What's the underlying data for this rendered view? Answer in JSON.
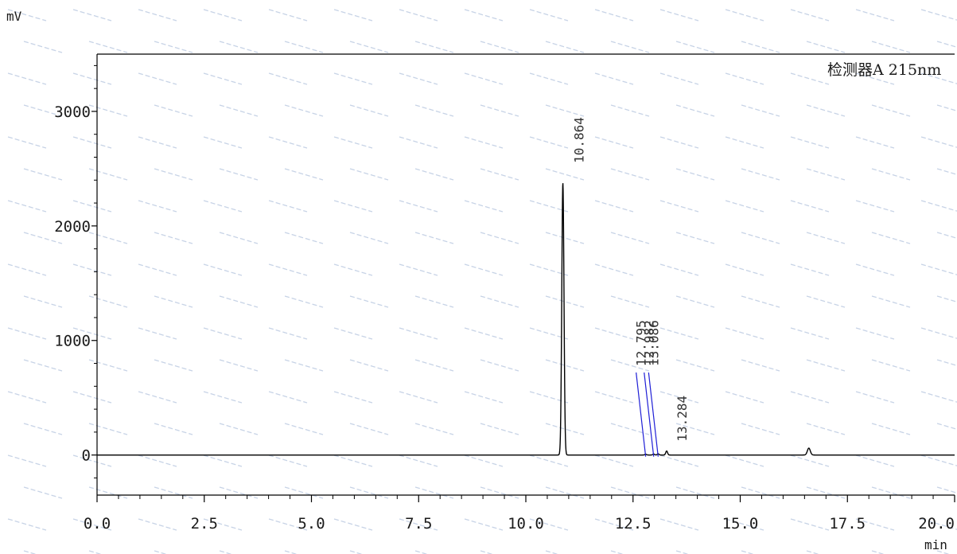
{
  "chart_data": {
    "type": "line",
    "title": "",
    "ylabel": "mV",
    "xlabel": "min",
    "detector_label": "检测器A 215nm",
    "xlim": [
      0,
      20
    ],
    "ylim": [
      -350,
      3500
    ],
    "grid": false,
    "x_ticks": [
      {
        "value": 0,
        "label": "0.0"
      },
      {
        "value": 2.5,
        "label": "2.5"
      },
      {
        "value": 5,
        "label": "5.0"
      },
      {
        "value": 7.5,
        "label": "7.5"
      },
      {
        "value": 10,
        "label": "10.0"
      },
      {
        "value": 12.5,
        "label": "12.5"
      },
      {
        "value": 15,
        "label": "15.0"
      },
      {
        "value": 17.5,
        "label": "17.5"
      },
      {
        "value": 20,
        "label": "20.0"
      }
    ],
    "y_ticks": [
      {
        "value": 0,
        "label": "0"
      },
      {
        "value": 1000,
        "label": "1000"
      },
      {
        "value": 2000,
        "label": "2000"
      },
      {
        "value": 3000,
        "label": "3000"
      }
    ],
    "peaks": [
      {
        "label": "10.864",
        "x": 10.864,
        "height": 2375,
        "width": 0.06
      },
      {
        "label": "12.795",
        "x": 12.795,
        "height": 6,
        "width": 0.05
      },
      {
        "label": "12.982",
        "x": 12.982,
        "height": 8,
        "width": 0.05
      },
      {
        "label": "13.086",
        "x": 13.086,
        "height": 10,
        "width": 0.05
      },
      {
        "label": "13.284",
        "x": 13.284,
        "height": 35,
        "width": 0.05
      }
    ],
    "unlabeled_peaks": [
      {
        "x": 16.6,
        "height": 60,
        "width": 0.08
      }
    ],
    "colors": {
      "trace": "#000000",
      "integration_marker": "#1f1fd6",
      "axis": "#000000",
      "watermark": "#c7d3e6"
    }
  }
}
